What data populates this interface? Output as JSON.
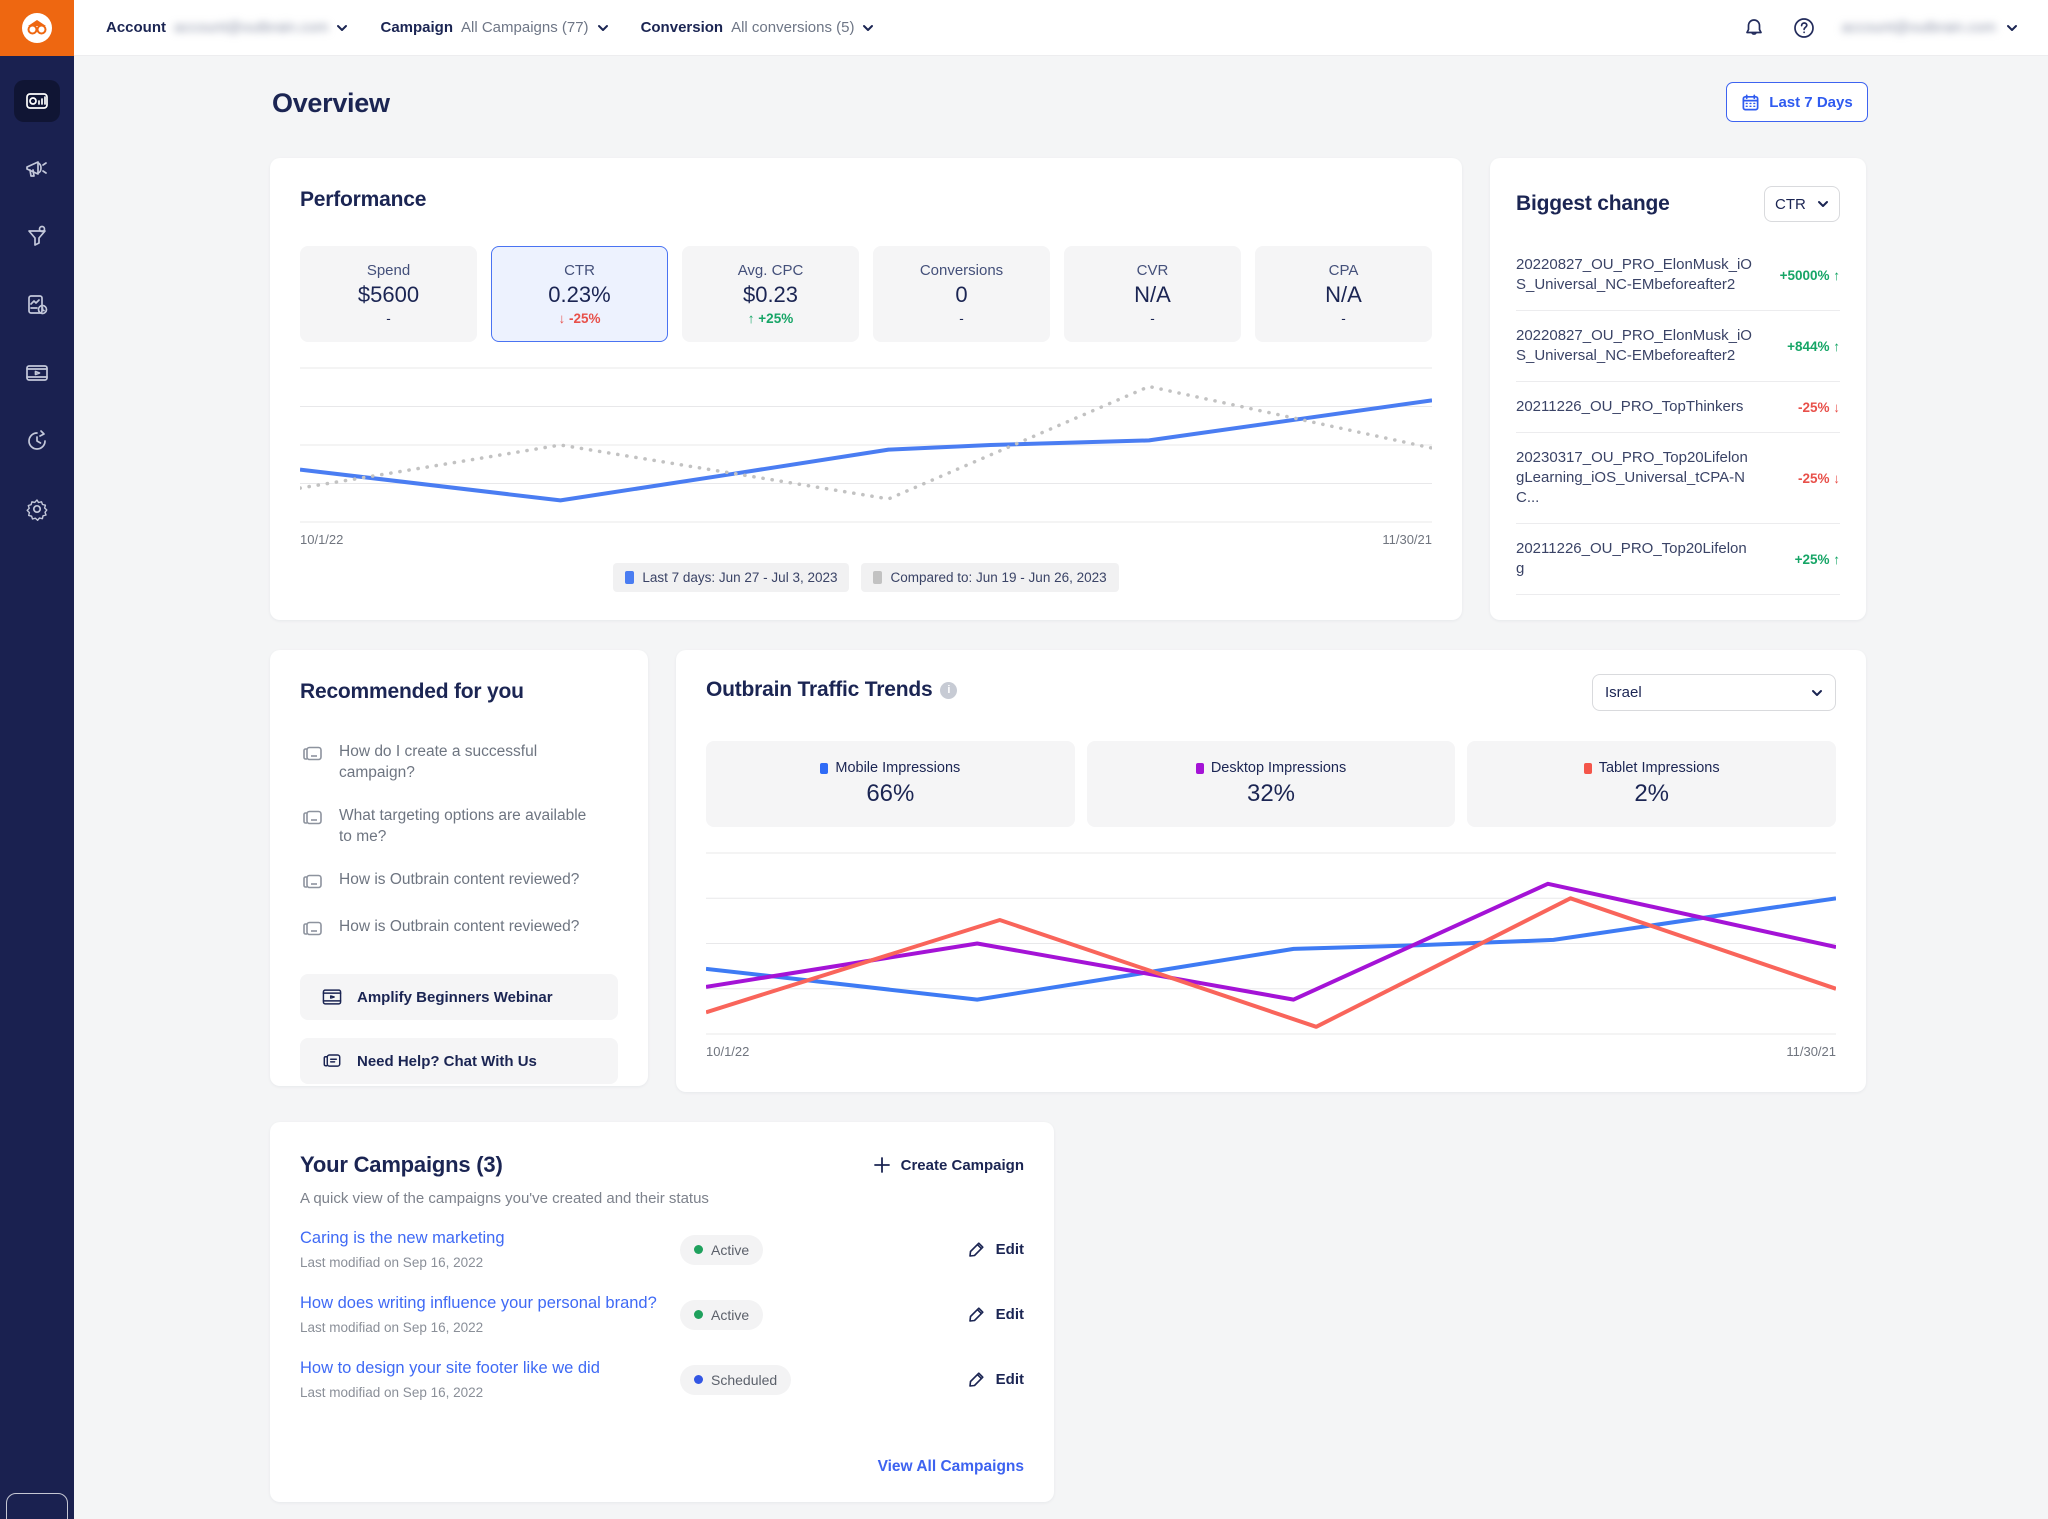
{
  "colors": {
    "accent_blue": "#3d63f0",
    "navy": "#1b2553",
    "green": "#16a566",
    "red": "#e8504a",
    "purple": "#a413d6",
    "coral": "#f9655b",
    "chart_blue": "#4a7df2",
    "chart_gray": "#c2c2c2",
    "sidebar_navy": "#1a2150",
    "logo_orange": "#ee6711"
  },
  "topbar": {
    "account_label": "Account",
    "account_value": "account@outbrain.com",
    "campaign_label": "Campaign",
    "campaign_value": "All Campaigns (77)",
    "conversion_label": "Conversion",
    "conversion_value": "All conversions (5)",
    "user_email": "account@outbrain.com",
    "icons": [
      "bell-icon",
      "help-icon",
      "chevron-down-icon"
    ]
  },
  "sidebar": {
    "logo_icon": "outbrain-face-logo",
    "items": [
      "dashboard-overview",
      "campaigns-megaphone",
      "conversions-funnel",
      "reports-document",
      "creative-video",
      "history-clock",
      "settings-gear"
    ]
  },
  "page": {
    "title": "Overview",
    "date_range_label": "Last 7 Days",
    "date_range_icon": "calendar-icon"
  },
  "performance": {
    "title": "Performance",
    "metrics": [
      {
        "label": "Spend",
        "value": "$5600",
        "delta": "-",
        "dir": "none",
        "selected": "false"
      },
      {
        "label": "CTR",
        "value": "0.23%",
        "delta": "↓ -25%",
        "dir": "down",
        "selected": "true"
      },
      {
        "label": "Avg. CPC",
        "value": "$0.23",
        "delta": "↑ +25%",
        "dir": "up",
        "selected": "false"
      },
      {
        "label": "Conversions",
        "value": "0",
        "delta": "-",
        "dir": "none",
        "selected": "false"
      },
      {
        "label": "CVR",
        "value": "N/A",
        "delta": "-",
        "dir": "none",
        "selected": "false"
      },
      {
        "label": "CPA",
        "value": "N/A",
        "delta": "-",
        "dir": "none",
        "selected": "false"
      }
    ],
    "chart_data": {
      "type": "line",
      "x_left_label": "10/1/22",
      "x_right_label": "11/30/21",
      "ylim": [
        0,
        100
      ],
      "gridlines": 5,
      "legend_position": "bottom",
      "series": [
        {
          "name": "Last 7 days: Jun 27 - Jul 3, 2023",
          "color": "#4a7df2",
          "style": "solid",
          "width": 4,
          "points": [
            [
              0,
              34
            ],
            [
              0.23,
              14
            ],
            [
              0.38,
              31
            ],
            [
              0.52,
              47
            ],
            [
              0.61,
              50
            ],
            [
              0.75,
              53
            ],
            [
              1,
              79
            ]
          ]
        },
        {
          "name": "Compared to: Jun 19 - Jun 26, 2023",
          "color": "#c2c2c2",
          "style": "dotted",
          "width": 3.5,
          "points": [
            [
              0,
              22
            ],
            [
              0.23,
              50
            ],
            [
              0.52,
              15
            ],
            [
              0.75,
              88
            ],
            [
              1,
              48
            ]
          ]
        }
      ]
    },
    "legend": [
      {
        "label": "Last 7 days: Jun 27 - Jul 3, 2023",
        "color": "#4a7df2"
      },
      {
        "label": "Compared to: Jun 19 - Jun 26, 2023",
        "color": "#c2c2c2"
      }
    ]
  },
  "biggest_change": {
    "title": "Biggest change",
    "metric_select_value": "CTR",
    "rows": [
      {
        "name": "20220827_OU_PRO_ElonMusk_iOS_Universal_NC-EMbeforeafter2",
        "change": "+5000% ↑",
        "dir": "up"
      },
      {
        "name": "20220827_OU_PRO_ElonMusk_iOS_Universal_NC-EMbeforeafter2",
        "change": "+844% ↑",
        "dir": "up"
      },
      {
        "name": "20211226_OU_PRO_TopThinkers",
        "change": "-25% ↓",
        "dir": "down"
      },
      {
        "name": "20230317_OU_PRO_Top20LifelongLearning_iOS_Universal_tCPA-NC...",
        "change": "-25% ↓",
        "dir": "down"
      },
      {
        "name": "20211226_OU_PRO_Top20Lifelong",
        "change": "+25% ↑",
        "dir": "up"
      }
    ]
  },
  "recommended": {
    "title": "Recommended for you",
    "links": [
      {
        "text": "How do I create a successful campaign?"
      },
      {
        "text": "What targeting options are available to me?"
      },
      {
        "text": "How is Outbrain content reviewed?"
      },
      {
        "text": "How is Outbrain content reviewed?"
      }
    ],
    "webinar_label": "Amplify Beginners Webinar",
    "chat_label": "Need Help? Chat With Us"
  },
  "traffic": {
    "title": "Outbrain Traffic Trends",
    "country_select_value": "Israel",
    "tiles": [
      {
        "label": "Mobile Impressions",
        "value": "66%",
        "color": "#2f6bf6"
      },
      {
        "label": "Desktop Impressions",
        "value": "32%",
        "color": "#a413d6"
      },
      {
        "label": "Tablet Impressions",
        "value": "2%",
        "color": "#f4554a"
      }
    ],
    "chart_data": {
      "type": "line",
      "x_left_label": "10/1/22",
      "x_right_label": "11/30/21",
      "ylim": [
        0,
        100
      ],
      "gridlines": 5,
      "series": [
        {
          "name": "Mobile Impressions",
          "color": "#3e7bf4",
          "style": "solid",
          "width": 4,
          "points": [
            [
              0,
              36
            ],
            [
              0.24,
              19
            ],
            [
              0.39,
              34
            ],
            [
              0.52,
              47
            ],
            [
              0.63,
              49
            ],
            [
              0.75,
              52
            ],
            [
              1,
              75
            ]
          ]
        },
        {
          "name": "Desktop Impressions",
          "color": "#a413d6",
          "style": "solid",
          "width": 4,
          "points": [
            [
              0,
              26
            ],
            [
              0.24,
              50
            ],
            [
              0.52,
              19
            ],
            [
              0.745,
              83
            ],
            [
              1,
              48
            ]
          ]
        },
        {
          "name": "Tablet Impressions",
          "color": "#f9655b",
          "style": "solid",
          "width": 4,
          "points": [
            [
              0,
              12
            ],
            [
              0.26,
              63
            ],
            [
              0.54,
              4
            ],
            [
              0.765,
              75
            ],
            [
              1,
              25
            ]
          ]
        }
      ]
    }
  },
  "campaigns": {
    "title": "Your Campaigns (3)",
    "create_label": "Create Campaign",
    "subtitle": "A quick view of the campaigns you've created and their status",
    "edit_label": "Edit",
    "view_all_label": "View All Campaigns",
    "rows": [
      {
        "title": "Caring is the new marketing",
        "modified": "Last modifiad on Sep 16, 2022",
        "status": "Active",
        "status_color": "green"
      },
      {
        "title": "How does writing influence your personal brand?",
        "modified": "Last modifiad on Sep 16, 2022",
        "status": "Active",
        "status_color": "green"
      },
      {
        "title": "How to design your site footer like we did",
        "modified": "Last modifiad on Sep 16, 2022",
        "status": "Scheduled",
        "status_color": "blue"
      }
    ]
  }
}
